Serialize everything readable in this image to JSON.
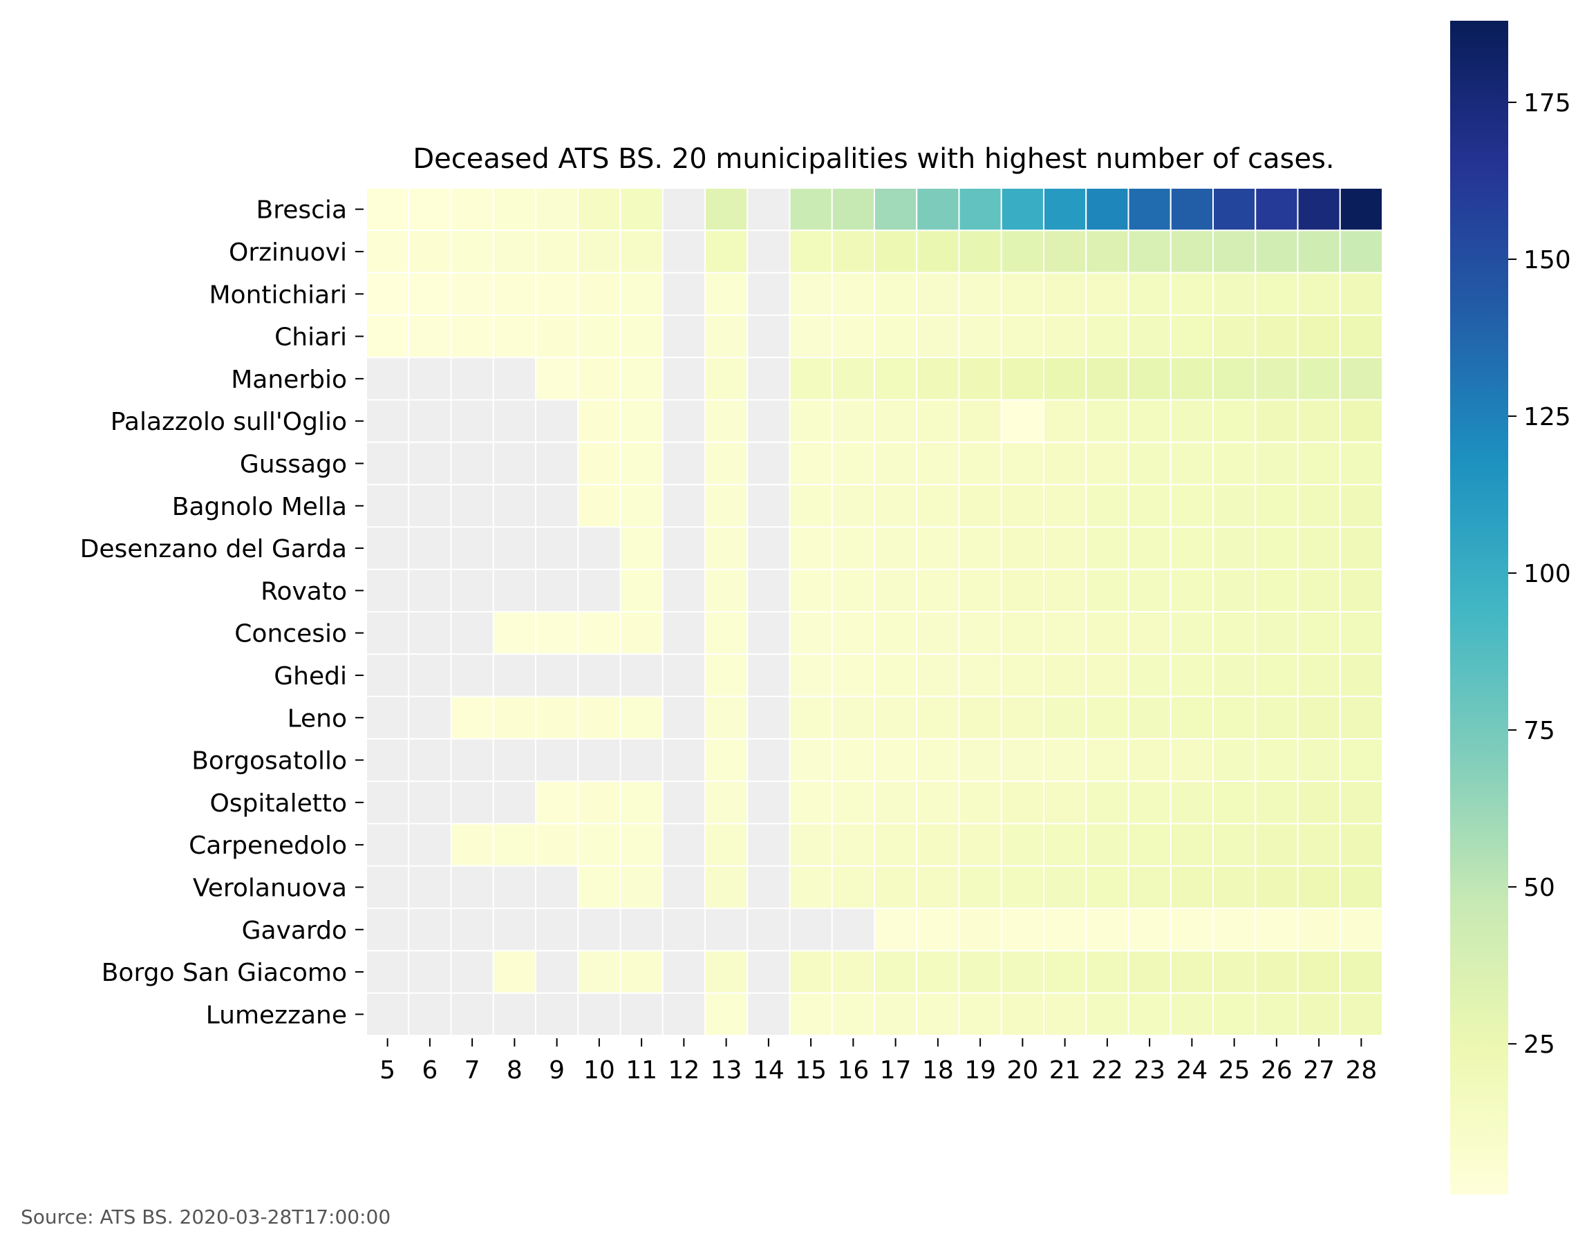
{
  "chart_data": {
    "type": "heatmap",
    "title": "Deceased ATS BS. 20 municipalities with highest number of cases.",
    "x": [
      5,
      6,
      7,
      8,
      9,
      10,
      11,
      12,
      13,
      14,
      15,
      16,
      17,
      18,
      19,
      20,
      21,
      22,
      23,
      24,
      25,
      26,
      27,
      28
    ],
    "y": [
      "Brescia",
      "Orzinuovi",
      "Montichiari",
      "Chiari",
      "Manerbio",
      "Palazzolo sull'Oglio",
      "Gussago",
      "Bagnolo Mella",
      "Desenzano del Garda",
      "Rovato",
      "Concesio",
      "Ghedi",
      "Leno",
      "Borgosatollo",
      "Ospitaletto",
      "Carpenedolo",
      "Verolanuova",
      "Gavardo",
      "Borgo San Giacomo",
      "Lumezzane"
    ],
    "values": [
      [
        2,
        2,
        4,
        6,
        7,
        14,
        16,
        null,
        32,
        null,
        45,
        48,
        60,
        72,
        82,
        100,
        112,
        123,
        135,
        142,
        155,
        162,
        175,
        187
      ],
      [
        4,
        5,
        6,
        7,
        8,
        10,
        12,
        null,
        18,
        null,
        18,
        20,
        24,
        26,
        28,
        31,
        33,
        35,
        37,
        38,
        40,
        41,
        43,
        45
      ],
      [
        1,
        2,
        3,
        4,
        4,
        5,
        6,
        null,
        6,
        null,
        7,
        8,
        9,
        10,
        11,
        12,
        13,
        14,
        15,
        16,
        17,
        18,
        19,
        20
      ],
      [
        2,
        3,
        4,
        4,
        5,
        6,
        6,
        null,
        7,
        null,
        7,
        8,
        9,
        10,
        11,
        12,
        14,
        15,
        17,
        18,
        20,
        22,
        23,
        24
      ],
      [
        null,
        null,
        null,
        null,
        3,
        5,
        6,
        null,
        9,
        null,
        16,
        17,
        18,
        20,
        22,
        24,
        26,
        27,
        28,
        28,
        29,
        30,
        31,
        33
      ],
      [
        null,
        null,
        null,
        null,
        null,
        5,
        6,
        null,
        7,
        null,
        9,
        10,
        11,
        12,
        13,
        1,
        14,
        15,
        16,
        17,
        18,
        20,
        21,
        23
      ],
      [
        null,
        null,
        null,
        null,
        null,
        5,
        6,
        null,
        7,
        null,
        8,
        9,
        10,
        11,
        12,
        12,
        13,
        14,
        15,
        15,
        16,
        17,
        18,
        19
      ],
      [
        null,
        null,
        null,
        null,
        null,
        5,
        6,
        null,
        7,
        null,
        9,
        10,
        11,
        12,
        13,
        14,
        14,
        15,
        16,
        16,
        17,
        18,
        19,
        20
      ],
      [
        null,
        null,
        null,
        null,
        null,
        null,
        6,
        null,
        7,
        null,
        8,
        9,
        10,
        11,
        12,
        13,
        14,
        15,
        16,
        16,
        17,
        18,
        19,
        20
      ],
      [
        null,
        null,
        null,
        null,
        null,
        null,
        6,
        null,
        7,
        null,
        8,
        9,
        10,
        11,
        12,
        13,
        14,
        15,
        15,
        16,
        17,
        18,
        19,
        20
      ],
      [
        null,
        null,
        null,
        3,
        3,
        4,
        5,
        null,
        6,
        null,
        7,
        8,
        9,
        10,
        11,
        12,
        12,
        13,
        14,
        15,
        16,
        17,
        18,
        19
      ],
      [
        null,
        null,
        null,
        null,
        null,
        null,
        null,
        null,
        6,
        null,
        7,
        8,
        9,
        10,
        11,
        12,
        13,
        14,
        15,
        16,
        17,
        18,
        19,
        20
      ],
      [
        null,
        null,
        4,
        5,
        5,
        5,
        6,
        null,
        7,
        null,
        9,
        10,
        11,
        12,
        14,
        14,
        15,
        16,
        17,
        18,
        18,
        19,
        20,
        21
      ],
      [
        null,
        null,
        null,
        null,
        null,
        null,
        null,
        null,
        6,
        null,
        7,
        8,
        8,
        9,
        10,
        10,
        11,
        12,
        13,
        14,
        15,
        16,
        17,
        18
      ],
      [
        null,
        null,
        null,
        null,
        4,
        5,
        6,
        null,
        7,
        null,
        8,
        9,
        10,
        11,
        12,
        13,
        14,
        15,
        16,
        17,
        18,
        19,
        20,
        21
      ],
      [
        null,
        null,
        5,
        6,
        5,
        6,
        6,
        null,
        9,
        null,
        10,
        11,
        12,
        13,
        14,
        15,
        16,
        17,
        18,
        19,
        19,
        20,
        21,
        22
      ],
      [
        null,
        null,
        null,
        null,
        null,
        6,
        7,
        null,
        10,
        null,
        11,
        12,
        13,
        14,
        15,
        16,
        17,
        18,
        19,
        20,
        21,
        22,
        23,
        24
      ],
      [
        null,
        null,
        null,
        null,
        null,
        null,
        null,
        null,
        null,
        null,
        null,
        null,
        3,
        4,
        5,
        4,
        4,
        4,
        4,
        4,
        4,
        4,
        5,
        5
      ],
      [
        null,
        null,
        null,
        5,
        null,
        7,
        8,
        null,
        11,
        null,
        13,
        14,
        15,
        16,
        17,
        17,
        18,
        19,
        20,
        20,
        21,
        22,
        23,
        24
      ],
      [
        null,
        null,
        null,
        null,
        null,
        null,
        null,
        null,
        6,
        null,
        8,
        9,
        10,
        11,
        12,
        13,
        14,
        15,
        16,
        17,
        18,
        19,
        20,
        21
      ]
    ],
    "colorbar": {
      "ticks": [
        25,
        50,
        75,
        100,
        125,
        150,
        175
      ],
      "range": [
        1,
        188
      ]
    },
    "colorscale": "YlGnBu",
    "missing_color": "#eeeeee",
    "source": "Source: ATS BS. 2020-03-28T17:00:00"
  }
}
